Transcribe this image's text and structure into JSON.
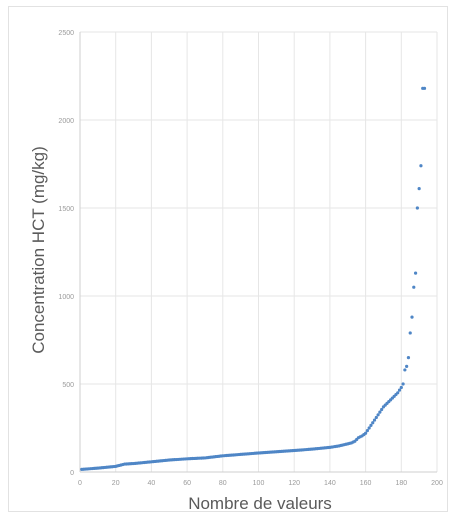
{
  "chart_data": {
    "type": "scatter",
    "title": "",
    "xlabel": "Nombre de valeurs",
    "ylabel": "Concentration HCT (mg/kg)",
    "xlim": [
      0,
      200
    ],
    "ylim": [
      0,
      2500
    ],
    "xticks": [
      "0",
      "20",
      "40",
      "60",
      "80",
      "100",
      "120",
      "140",
      "160",
      "180",
      "200"
    ],
    "yticks": [
      "0",
      "500",
      "1000",
      "1500",
      "2000",
      "2500"
    ],
    "grid": true,
    "legend": "none",
    "color": "#4f86c6",
    "curve_anchors": [
      [
        1,
        15
      ],
      [
        10,
        22
      ],
      [
        20,
        32
      ],
      [
        25,
        45
      ],
      [
        30,
        48
      ],
      [
        40,
        58
      ],
      [
        50,
        68
      ],
      [
        60,
        75
      ],
      [
        70,
        80
      ],
      [
        80,
        92
      ],
      [
        90,
        100
      ],
      [
        100,
        108
      ],
      [
        110,
        115
      ],
      [
        120,
        122
      ],
      [
        130,
        130
      ],
      [
        140,
        140
      ],
      [
        145,
        148
      ],
      [
        150,
        160
      ],
      [
        152,
        165
      ],
      [
        154,
        175
      ],
      [
        155,
        185
      ],
      [
        156,
        195
      ],
      [
        158,
        205
      ],
      [
        160,
        220
      ],
      [
        162,
        250
      ],
      [
        164,
        280
      ],
      [
        166,
        310
      ],
      [
        168,
        340
      ],
      [
        170,
        370
      ],
      [
        172,
        390
      ],
      [
        174,
        410
      ],
      [
        176,
        430
      ],
      [
        178,
        450
      ],
      [
        180,
        480
      ],
      [
        181,
        500
      ]
    ],
    "outliers": [
      [
        182,
        580
      ],
      [
        183,
        600
      ],
      [
        184,
        650
      ],
      [
        185,
        790
      ],
      [
        186,
        880
      ],
      [
        187,
        1050
      ],
      [
        188,
        1130
      ],
      [
        189,
        1500
      ],
      [
        190,
        1610
      ],
      [
        191,
        1740
      ],
      [
        192,
        2180
      ],
      [
        193,
        2180
      ]
    ]
  }
}
